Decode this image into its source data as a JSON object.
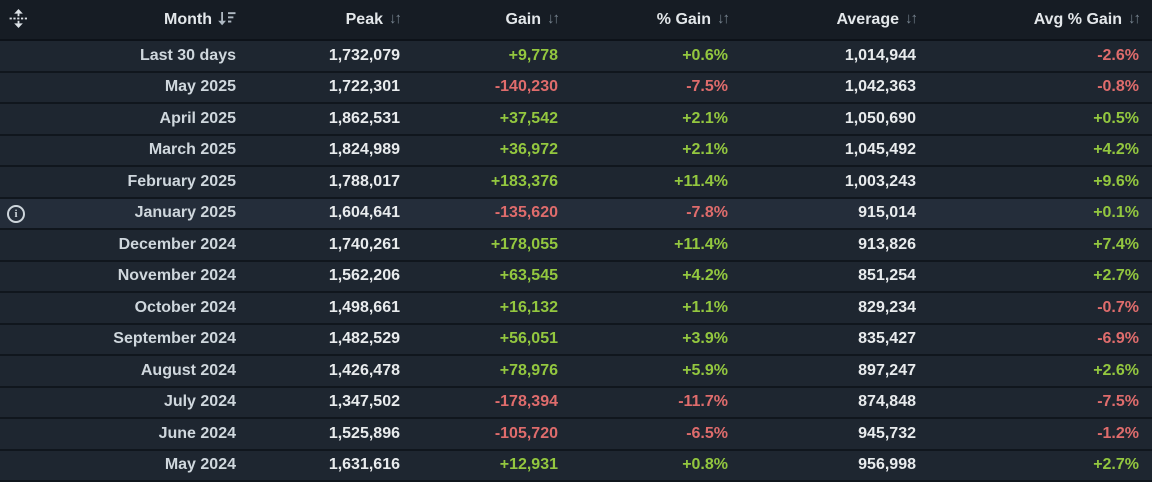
{
  "table": {
    "columns": [
      {
        "label": "Month",
        "sort_state": "descending"
      },
      {
        "label": "Peak",
        "sort_state": "none"
      },
      {
        "label": "Gain",
        "sort_state": "none"
      },
      {
        "label": "% Gain",
        "sort_state": "none"
      },
      {
        "label": "Average",
        "sort_state": "none"
      },
      {
        "label": "Avg % Gain",
        "sort_state": "none"
      }
    ],
    "rows": [
      {
        "month": "Last 30 days",
        "peak": "1,732,079",
        "gain": "+9,778",
        "gain_pct": "+0.6%",
        "average": "1,014,944",
        "avg_gain_pct": "-2.6%",
        "has_info": false
      },
      {
        "month": "May 2025",
        "peak": "1,722,301",
        "gain": "-140,230",
        "gain_pct": "-7.5%",
        "average": "1,042,363",
        "avg_gain_pct": "-0.8%",
        "has_info": false
      },
      {
        "month": "April 2025",
        "peak": "1,862,531",
        "gain": "+37,542",
        "gain_pct": "+2.1%",
        "average": "1,050,690",
        "avg_gain_pct": "+0.5%",
        "has_info": false
      },
      {
        "month": "March 2025",
        "peak": "1,824,989",
        "gain": "+36,972",
        "gain_pct": "+2.1%",
        "average": "1,045,492",
        "avg_gain_pct": "+4.2%",
        "has_info": false
      },
      {
        "month": "February 2025",
        "peak": "1,788,017",
        "gain": "+183,376",
        "gain_pct": "+11.4%",
        "average": "1,003,243",
        "avg_gain_pct": "+9.6%",
        "has_info": false
      },
      {
        "month": "January 2025",
        "peak": "1,604,641",
        "gain": "-135,620",
        "gain_pct": "-7.8%",
        "average": "915,014",
        "avg_gain_pct": "+0.1%",
        "has_info": true
      },
      {
        "month": "December 2024",
        "peak": "1,740,261",
        "gain": "+178,055",
        "gain_pct": "+11.4%",
        "average": "913,826",
        "avg_gain_pct": "+7.4%",
        "has_info": false
      },
      {
        "month": "November 2024",
        "peak": "1,562,206",
        "gain": "+63,545",
        "gain_pct": "+4.2%",
        "average": "851,254",
        "avg_gain_pct": "+2.7%",
        "has_info": false
      },
      {
        "month": "October 2024",
        "peak": "1,498,661",
        "gain": "+16,132",
        "gain_pct": "+1.1%",
        "average": "829,234",
        "avg_gain_pct": "-0.7%",
        "has_info": false
      },
      {
        "month": "September 2024",
        "peak": "1,482,529",
        "gain": "+56,051",
        "gain_pct": "+3.9%",
        "average": "835,427",
        "avg_gain_pct": "-6.9%",
        "has_info": false
      },
      {
        "month": "August 2024",
        "peak": "1,426,478",
        "gain": "+78,976",
        "gain_pct": "+5.9%",
        "average": "897,247",
        "avg_gain_pct": "+2.6%",
        "has_info": false
      },
      {
        "month": "July 2024",
        "peak": "1,347,502",
        "gain": "-178,394",
        "gain_pct": "-11.7%",
        "average": "874,848",
        "avg_gain_pct": "-7.5%",
        "has_info": false
      },
      {
        "month": "June 2024",
        "peak": "1,525,896",
        "gain": "-105,720",
        "gain_pct": "-6.5%",
        "average": "945,732",
        "avg_gain_pct": "-1.2%",
        "has_info": false
      },
      {
        "month": "May 2024",
        "peak": "1,631,616",
        "gain": "+12,931",
        "gain_pct": "+0.8%",
        "average": "956,998",
        "avg_gain_pct": "+2.7%",
        "has_info": false
      }
    ]
  },
  "icons": {
    "move_handle": "drag-move-handle",
    "sort_active": "sort-descending",
    "sort_both_glyph": "↓↑",
    "info_glyph": "i"
  },
  "colors": {
    "positive": "#93c73f",
    "negative": "#df6c6c",
    "header_bg": "#161c24",
    "row_bg": "#1e2630",
    "highlight_row_bg": "#242d3a",
    "separator": "#10161d",
    "number_text": "#e8ebed",
    "month_text": "#cfd7dd"
  }
}
